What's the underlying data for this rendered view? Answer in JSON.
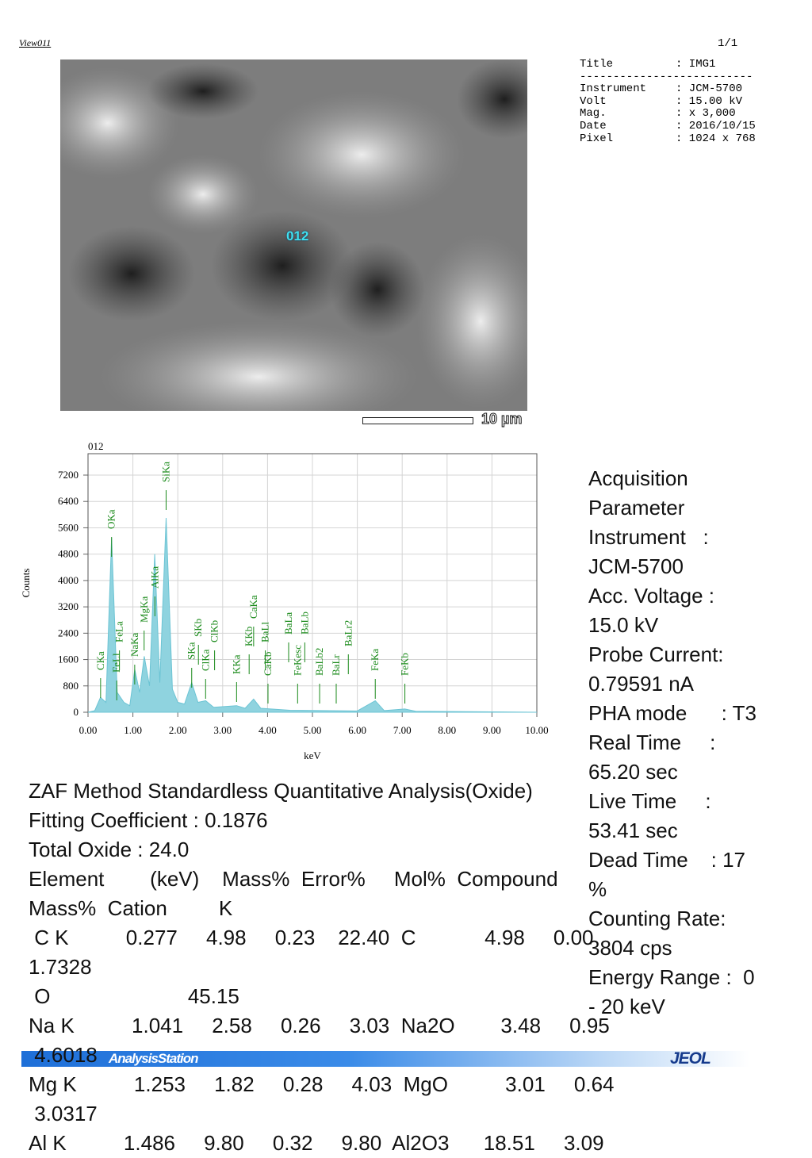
{
  "header": {
    "view": "View011",
    "page": "1/1"
  },
  "info": {
    "rows": [
      {
        "label": "Title",
        "value": ": IMG1"
      }
    ],
    "separator": "--------------------------",
    "details": [
      {
        "label": "Instrument",
        "value": ": JCM-5700"
      },
      {
        "label": "Volt",
        "value": ": 15.00 kV"
      },
      {
        "label": "Mag.",
        "value": ": x 3,000"
      },
      {
        "label": "Date",
        "value": ": 2016/10/15"
      },
      {
        "label": "Pixel",
        "value": ": 1024 x 768"
      }
    ]
  },
  "image": {
    "spot": "012",
    "scale": "10 µm"
  },
  "chart_data": {
    "type": "line",
    "title": "012",
    "x_label": "keV",
    "y_label": "Counts",
    "color": "#8fd3df",
    "grid": true,
    "x": [
      0,
      0.15,
      0.277,
      0.4,
      0.525,
      0.65,
      0.8,
      0.93,
      1.041,
      1.15,
      1.253,
      1.37,
      1.486,
      1.6,
      1.74,
      1.88,
      2.0,
      2.15,
      2.31,
      2.45,
      2.62,
      2.8,
      3.31,
      3.5,
      3.69,
      3.85,
      4.5,
      6.0,
      6.4,
      6.6,
      7.06,
      7.3,
      10
    ],
    "values": [
      0,
      50,
      450,
      300,
      5300,
      600,
      300,
      200,
      1300,
      600,
      1700,
      800,
      4800,
      900,
      5900,
      700,
      300,
      250,
      900,
      300,
      350,
      150,
      200,
      120,
      400,
      120,
      60,
      40,
      350,
      50,
      100,
      30,
      0
    ],
    "xlim": [
      0,
      10
    ],
    "ylim": [
      0,
      7850
    ],
    "xticks": [
      {
        "value": 0,
        "label": "0.00"
      },
      {
        "value": 1,
        "label": "1.00"
      },
      {
        "value": 2,
        "label": "2.00"
      },
      {
        "value": 3,
        "label": "3.00"
      },
      {
        "value": 4,
        "label": "4.00"
      },
      {
        "value": 5,
        "label": "5.00"
      },
      {
        "value": 6,
        "label": "6.00"
      },
      {
        "value": 7,
        "label": "7.00"
      },
      {
        "value": 8,
        "label": "8.00"
      },
      {
        "value": 9,
        "label": "9.00"
      },
      {
        "value": 10,
        "label": "10.00"
      }
    ],
    "yticks": [
      0,
      800,
      1600,
      2400,
      3200,
      4000,
      4800,
      5600,
      6400,
      7200
    ],
    "peaks": [
      {
        "label": "CKa",
        "energy": 0.28
      },
      {
        "label": "FeLl",
        "energy": 0.64
      },
      {
        "label": "FeLa",
        "energy": 0.7
      },
      {
        "label": "OKa",
        "energy": 0.525
      },
      {
        "label": "NaKa",
        "energy": 1.04
      },
      {
        "label": "MgKa",
        "energy": 1.25
      },
      {
        "label": "AlKa",
        "energy": 1.49
      },
      {
        "label": "SiKa",
        "energy": 1.74
      },
      {
        "label": "SKa",
        "energy": 2.31
      },
      {
        "label": "SKb",
        "energy": 2.46
      },
      {
        "label": "ClKa",
        "energy": 2.62
      },
      {
        "label": "ClKb",
        "energy": 2.82
      },
      {
        "label": "KKa",
        "energy": 3.31
      },
      {
        "label": "KKb",
        "energy": 3.59
      },
      {
        "label": "CaKa",
        "energy": 3.69
      },
      {
        "label": "CaKb",
        "energy": 4.01
      },
      {
        "label": "BaLl",
        "energy": 3.95
      },
      {
        "label": "BaLa",
        "energy": 4.47
      },
      {
        "label": "FeKesc",
        "energy": 4.67
      },
      {
        "label": "BaLb",
        "energy": 4.83
      },
      {
        "label": "BaLb2",
        "energy": 5.16
      },
      {
        "label": "BaLr",
        "energy": 5.53
      },
      {
        "label": "BaLr2",
        "energy": 5.8
      },
      {
        "label": "FeKa",
        "energy": 6.4
      },
      {
        "label": "FeKb",
        "energy": 7.06
      }
    ]
  },
  "analysis": {
    "lines": [
      "ZAF Method Standardless Quantitative Analysis(Oxide)",
      "Fitting Coefficient : 0.1876",
      "Total Oxide : 24.0",
      "Element        (keV)    Mass%  Error%     Mol%  Compound",
      "Mass%  Cation         K",
      " C K          0.277     4.98     0.23    22.40  C            4.98     0.00",
      "1.7328",
      " O                        45.15",
      "Na K          1.041     2.58     0.26     3.03  Na2O        3.48     0.95",
      " 4.6018",
      "Mg K          1.253     1.82     0.28     4.03  MgO          3.01     0.64",
      " 3.0317",
      "Al K          1.486     9.80     0.32     9.80  Al2O3      18.51     3.09"
    ]
  },
  "acquisition": {
    "lines": [
      "Acquisition",
      "Parameter",
      "Instrument   :",
      "JCM-5700",
      "Acc. Voltage :",
      "15.0 kV",
      "Probe Current:",
      "0.79591 nA",
      "PHA mode      : T3",
      "Real Time     :",
      "65.20 sec",
      "Live Time     :",
      "53.41 sec",
      "Dead Time    : 17",
      "%",
      "Counting Rate:",
      "3804 cps",
      "Energy Range :  0",
      "- 20 keV"
    ]
  },
  "footer": {
    "brand": "AnalysisStation",
    "logo": "JEOL"
  }
}
